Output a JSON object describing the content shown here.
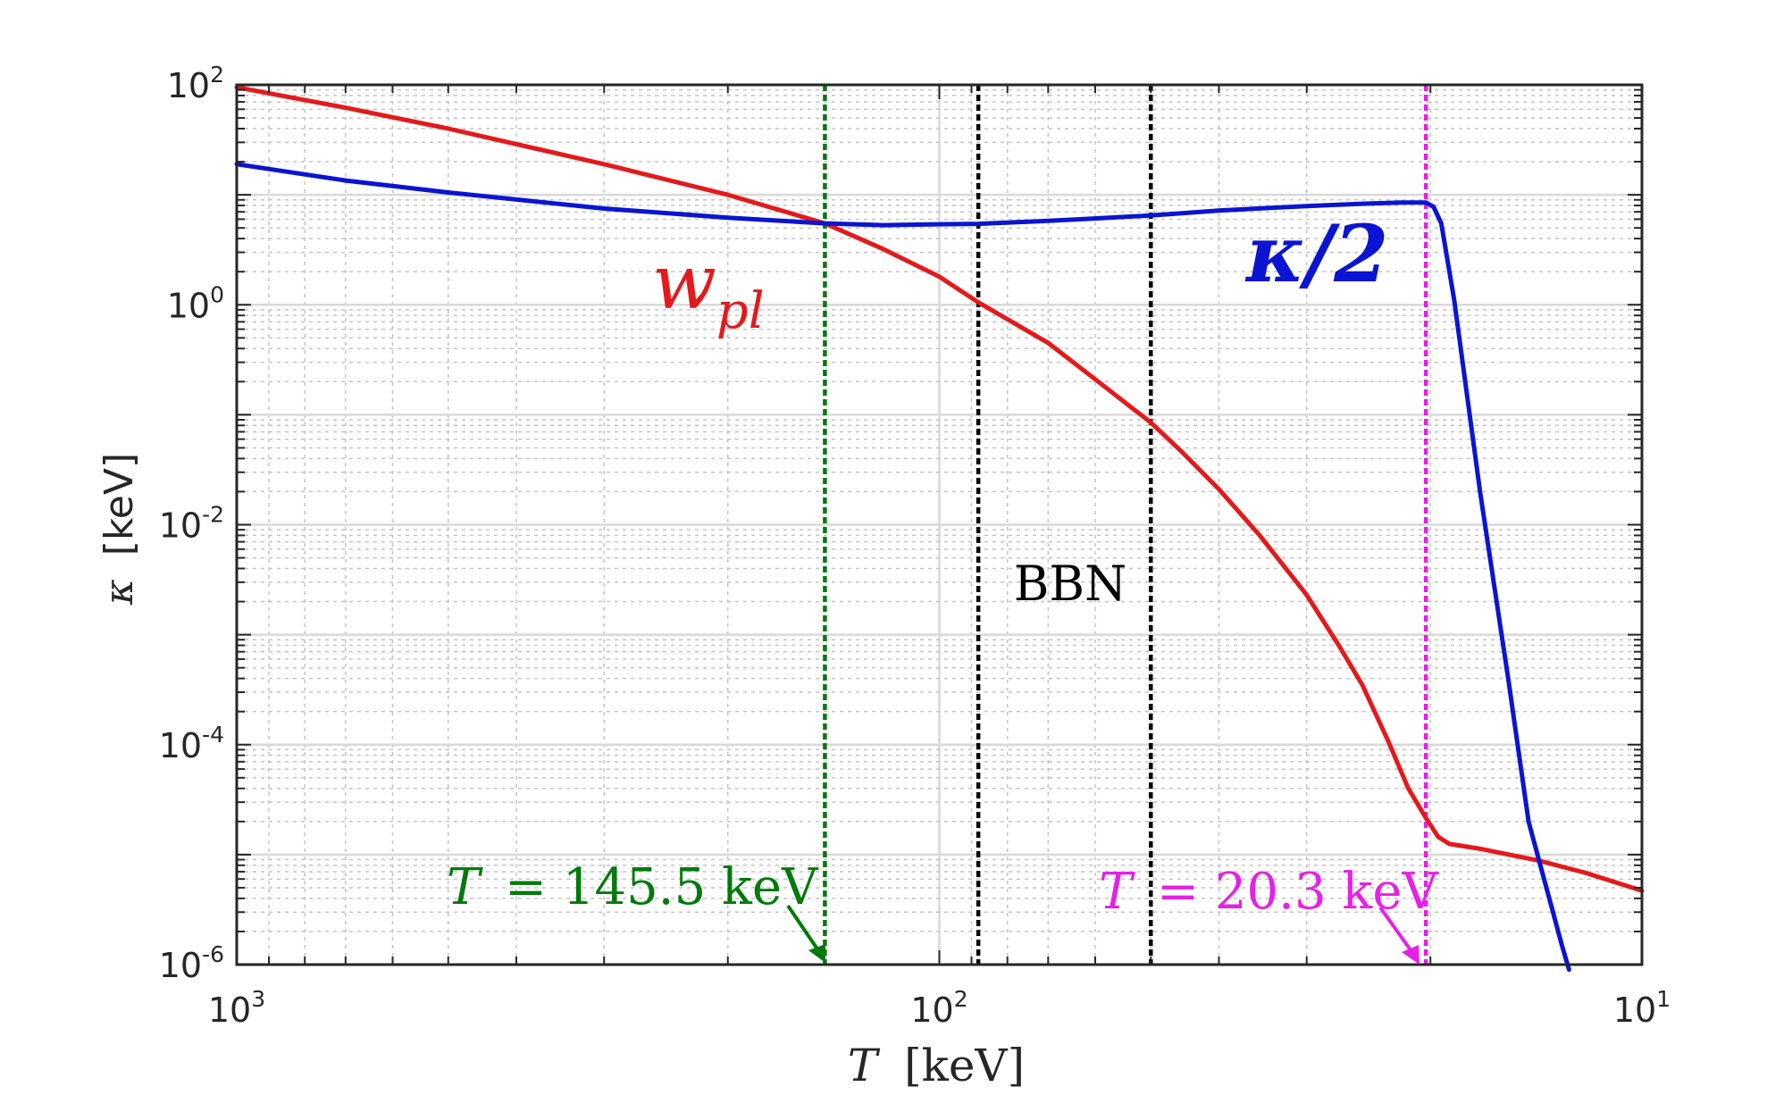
{
  "chart_data": {
    "type": "line",
    "xlabel": "T [keV]",
    "xlabel_var": "T",
    "xlabel_unit": "[keV]",
    "ylabel": "κ [keV]",
    "ylabel_var": "κ",
    "ylabel_unit": "[keV]",
    "x_scale": "log",
    "y_scale": "log",
    "x_reversed": true,
    "xlim": [
      1000,
      10
    ],
    "ylim": [
      1e-06,
      100
    ],
    "grid": true,
    "x_ticks": [
      {
        "value": 1000,
        "base": "10",
        "exp": "3"
      },
      {
        "value": 100,
        "base": "10",
        "exp": "2"
      },
      {
        "value": 10,
        "base": "10",
        "exp": "1"
      }
    ],
    "y_ticks": [
      {
        "value": 100,
        "base": "10",
        "exp": "2"
      },
      {
        "value": 1,
        "base": "10",
        "exp": "0"
      },
      {
        "value": 0.01,
        "base": "10",
        "exp": "-2"
      },
      {
        "value": 0.0001,
        "base": "10",
        "exp": "-4"
      },
      {
        "value": 1e-06,
        "base": "10",
        "exp": "-6"
      }
    ],
    "series": [
      {
        "name": "w_pl",
        "label_main": "w",
        "label_sub": "pl",
        "color": "#e31a1c",
        "points": [
          [
            1000,
            95
          ],
          [
            700,
            62
          ],
          [
            500,
            40
          ],
          [
            300,
            19
          ],
          [
            200,
            10
          ],
          [
            145.5,
            5.5
          ],
          [
            120,
            3.2
          ],
          [
            100,
            1.8
          ],
          [
            88,
            1.05
          ],
          [
            70,
            0.45
          ],
          [
            60,
            0.21
          ],
          [
            50,
            0.085
          ],
          [
            45,
            0.045
          ],
          [
            40,
            0.021
          ],
          [
            35,
            0.008
          ],
          [
            30,
            0.0023
          ],
          [
            27,
            0.0008
          ],
          [
            25,
            0.00035
          ],
          [
            23,
            0.00011
          ],
          [
            21.5,
            4e-05
          ],
          [
            20.3,
            2.15e-05
          ],
          [
            19.5,
            1.45e-05
          ],
          [
            18.8,
            1.25e-05
          ],
          [
            17,
            1.13e-05
          ],
          [
            14,
            8.8e-06
          ],
          [
            12,
            6.8e-06
          ],
          [
            10,
            4.7e-06
          ]
        ]
      },
      {
        "name": "κ/2",
        "label": "κ/2",
        "color": "#0a14d2",
        "points": [
          [
            1000,
            19
          ],
          [
            700,
            13.5
          ],
          [
            500,
            10.5
          ],
          [
            300,
            7.5
          ],
          [
            200,
            6.2
          ],
          [
            145.5,
            5.5
          ],
          [
            120,
            5.3
          ],
          [
            100,
            5.4
          ],
          [
            88,
            5.45
          ],
          [
            70,
            5.8
          ],
          [
            60,
            6.1
          ],
          [
            50,
            6.5
          ],
          [
            40,
            7.2
          ],
          [
            30,
            7.9
          ],
          [
            25,
            8.3
          ],
          [
            22,
            8.5
          ],
          [
            20.3,
            8.5
          ],
          [
            19.8,
            7.8
          ],
          [
            19.3,
            5.5
          ],
          [
            18.5,
            1.1
          ],
          [
            17,
            0.02
          ],
          [
            15.5,
            0.0004
          ],
          [
            14.5,
            2e-05
          ],
          [
            13,
            1.5e-06
          ],
          [
            12.7,
            9e-07
          ]
        ]
      }
    ],
    "vlines": [
      {
        "x": 145.5,
        "color": "#007a0a"
      },
      {
        "x": 88,
        "color": "#000000"
      },
      {
        "x": 50,
        "color": "#000000"
      },
      {
        "x": 20.3,
        "color": "#e620e6"
      }
    ],
    "annotations": [
      {
        "id": "green",
        "label_var": "T",
        "label_rest": "= 145.5 keV",
        "color": "#007a0a",
        "target_x": 145.5
      },
      {
        "id": "magenta",
        "label_var": "T",
        "label_rest": "= 20.3 keV",
        "color": "#e620e6",
        "target_x": 20.3
      },
      {
        "id": "bbn",
        "label": "BBN",
        "color": "#000000"
      }
    ]
  }
}
